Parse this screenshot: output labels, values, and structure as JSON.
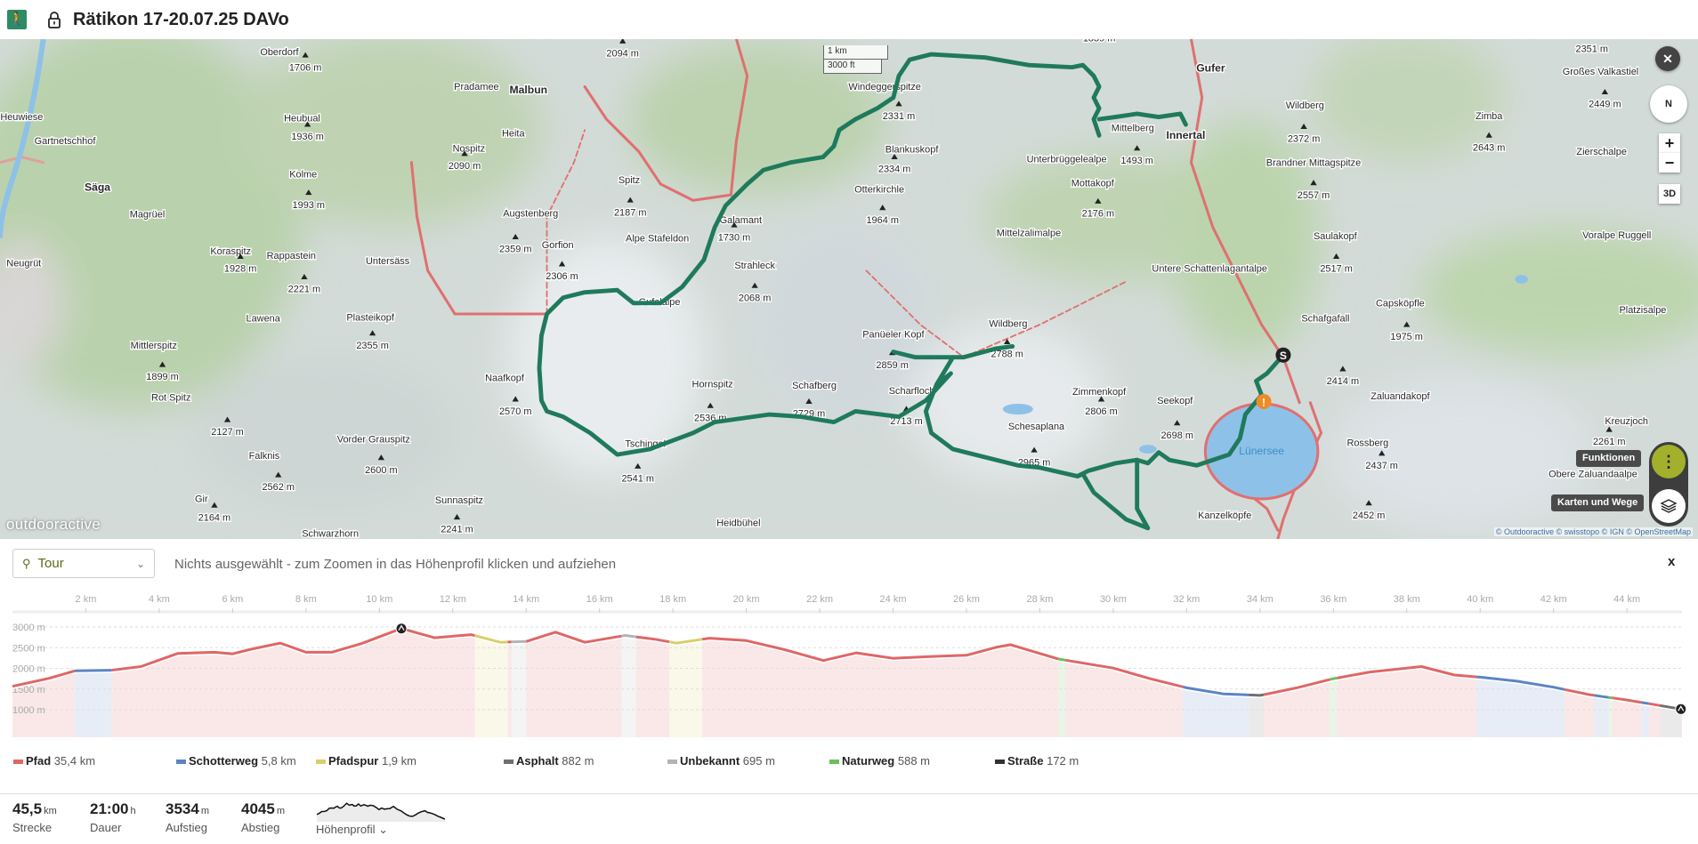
{
  "header": {
    "title": "Rätikon 17-20.07.25 DAVo",
    "activity_icon": "hiking-icon",
    "lock_icon": "lock-icon"
  },
  "map": {
    "scale_km": "1 km",
    "scale_ft": "3000 ft",
    "logo": "outdooractive",
    "attribution": "© Outdooractive © swisstopo © IGN © OpenStreetMap",
    "lake": "Lünersee",
    "controls": {
      "close": "✕",
      "compass": "N",
      "zoom_in": "+",
      "zoom_out": "−",
      "three_d": "3D",
      "functions_tip": "Funktionen",
      "layers_tip": "Karten und Wege"
    },
    "route_color": "#1f7a5c",
    "labels": [
      {
        "t": "Oberdorf",
        "k": "place"
      },
      {
        "t": "Heuwiese",
        "k": "place"
      },
      {
        "t": "Gartnetschhof",
        "k": "place"
      },
      {
        "t": "Säga",
        "k": "town"
      },
      {
        "t": "Neugrüt",
        "k": "place"
      },
      {
        "t": "Magrüel",
        "k": "place"
      },
      {
        "t": "Pradamee",
        "k": "place"
      },
      {
        "t": "Malbun",
        "k": "town"
      },
      {
        "t": "Heita",
        "k": "place"
      },
      {
        "t": "Nospitz",
        "k": "place"
      },
      {
        "t": "Augstenberg",
        "k": "place"
      },
      {
        "t": "Gorfion",
        "k": "place"
      },
      {
        "t": "Alpe Stafeldon",
        "k": "place"
      },
      {
        "t": "Gufelalpe",
        "k": "place"
      },
      {
        "t": "Untersäss",
        "k": "place"
      },
      {
        "t": "Lawena",
        "k": "place"
      },
      {
        "t": "Mittlerspitz",
        "k": "place"
      },
      {
        "t": "Rot Spitz",
        "k": "place"
      },
      {
        "t": "Falknis",
        "k": "place"
      },
      {
        "t": "Gir",
        "k": "place"
      },
      {
        "t": "Schwarzhorn",
        "k": "place"
      },
      {
        "t": "Heidbühel",
        "k": "place"
      },
      {
        "t": "Tschingel",
        "k": "place"
      },
      {
        "t": "Hornspitz",
        "k": "place"
      },
      {
        "t": "Schafberg",
        "k": "place"
      },
      {
        "t": "Scharfloch",
        "k": "place"
      },
      {
        "t": "Panüeler Kopf",
        "k": "place"
      },
      {
        "t": "Wildberg",
        "k": "place"
      },
      {
        "t": "Schesaplana",
        "k": "place"
      },
      {
        "t": "Zimmenkopf",
        "k": "place"
      },
      {
        "t": "Seekopf",
        "k": "place"
      },
      {
        "t": "Kanzelköpfe",
        "k": "place"
      },
      {
        "t": "Unterbrüggelealpe",
        "k": "place"
      },
      {
        "t": "Mittelzalimalpe",
        "k": "place"
      },
      {
        "t": "Mottakopf",
        "k": "place"
      },
      {
        "t": "Untere Schattenlagantalpe",
        "k": "place"
      },
      {
        "t": "Gufer",
        "k": "town"
      },
      {
        "t": "Innertal",
        "k": "town"
      },
      {
        "t": "Mittelberg",
        "k": "place"
      },
      {
        "t": "Windeggerspitze",
        "k": "place"
      },
      {
        "t": "Blankuskopf",
        "k": "place"
      },
      {
        "t": "Otterkirchle",
        "k": "place"
      },
      {
        "t": "Galamant",
        "k": "place"
      },
      {
        "t": "Strahleck",
        "k": "place"
      },
      {
        "t": "Spitz",
        "k": "place"
      },
      {
        "t": "Wildberg",
        "k": "place"
      },
      {
        "t": "Brandner Mittagspitze",
        "k": "place"
      },
      {
        "t": "Saulakopf",
        "k": "place"
      },
      {
        "t": "Zimba",
        "k": "place"
      },
      {
        "t": "Zierschalpe",
        "k": "place"
      },
      {
        "t": "Voralpe Ruggell",
        "k": "place"
      },
      {
        "t": "Capsköpfle",
        "k": "place"
      },
      {
        "t": "Schafgafall",
        "k": "place"
      },
      {
        "t": "Platzisalpe",
        "k": "place"
      },
      {
        "t": "Zaluandakopf",
        "k": "place"
      },
      {
        "t": "Rossberg",
        "k": "place"
      },
      {
        "t": "Obere Zaluandaalpe",
        "k": "place"
      },
      {
        "t": "Kreuzjoch",
        "k": "place"
      },
      {
        "t": "Großes Valkastiel",
        "k": "place"
      },
      {
        "t": "Koraspitz",
        "k": "place"
      },
      {
        "t": "Rappastein",
        "k": "place"
      },
      {
        "t": "Kolme",
        "k": "place"
      },
      {
        "t": "Heubual",
        "k": "place"
      },
      {
        "t": "Plasteikopf",
        "k": "place"
      },
      {
        "t": "Vorder Grauspitz",
        "k": "place"
      },
      {
        "t": "Sunnaspitz",
        "k": "place"
      },
      {
        "t": "Naafkopf",
        "k": "place"
      },
      {
        "t": "1706 m",
        "k": "h"
      },
      {
        "t": "1936 m",
        "k": "h"
      },
      {
        "t": "1993 m",
        "k": "h"
      },
      {
        "t": "2221 m",
        "k": "h"
      },
      {
        "t": "1928 m",
        "k": "h"
      },
      {
        "t": "2355 m",
        "k": "h"
      },
      {
        "t": "1899 m",
        "k": "h"
      },
      {
        "t": "2127 m",
        "k": "h"
      },
      {
        "t": "2600 m",
        "k": "h"
      },
      {
        "t": "2562 m",
        "k": "h"
      },
      {
        "t": "2164 m",
        "k": "h"
      },
      {
        "t": "2241 m",
        "k": "h"
      },
      {
        "t": "2094 m",
        "k": "h"
      },
      {
        "t": "2090 m",
        "k": "h"
      },
      {
        "t": "2359 m",
        "k": "h"
      },
      {
        "t": "2187 m",
        "k": "h"
      },
      {
        "t": "2306 m",
        "k": "h"
      },
      {
        "t": "1730 m",
        "k": "h"
      },
      {
        "t": "2068 m",
        "k": "h"
      },
      {
        "t": "2570 m",
        "k": "h"
      },
      {
        "t": "2536 m",
        "k": "h"
      },
      {
        "t": "2541 m",
        "k": "h"
      },
      {
        "t": "2729 m",
        "k": "h"
      },
      {
        "t": "2713 m",
        "k": "h"
      },
      {
        "t": "2859 m",
        "k": "h"
      },
      {
        "t": "2788 m",
        "k": "h"
      },
      {
        "t": "2965 m",
        "k": "h"
      },
      {
        "t": "2806 m",
        "k": "h"
      },
      {
        "t": "2698 m",
        "k": "h"
      },
      {
        "t": "2331 m",
        "k": "h"
      },
      {
        "t": "2334 m",
        "k": "h"
      },
      {
        "t": "1964 m",
        "k": "h"
      },
      {
        "t": "2176 m",
        "k": "h"
      },
      {
        "t": "1493 m",
        "k": "h"
      },
      {
        "t": "1839 m",
        "k": "h"
      },
      {
        "t": "2372 m",
        "k": "h"
      },
      {
        "t": "2557 m",
        "k": "h"
      },
      {
        "t": "2517 m",
        "k": "h"
      },
      {
        "t": "2414 m",
        "k": "h"
      },
      {
        "t": "1975 m",
        "k": "h"
      },
      {
        "t": "2437 m",
        "k": "h"
      },
      {
        "t": "2452 m",
        "k": "h"
      },
      {
        "t": "2643 m",
        "k": "h"
      },
      {
        "t": "2449 m",
        "k": "h"
      },
      {
        "t": "2351 m",
        "k": "h"
      },
      {
        "t": "2261 m",
        "k": "h"
      }
    ]
  },
  "profile": {
    "selector": "Tour",
    "hint": "Nichts ausgewählt - zum Zoomen in das Höhenprofil klicken und aufziehen",
    "close": "x"
  },
  "chart_data": {
    "type": "area",
    "xlabel": "",
    "ylabel": "",
    "xlim": [
      0,
      45.5
    ],
    "ylim": [
      330,
      3320
    ],
    "x_ticks": [
      "2 km",
      "4 km",
      "6 km",
      "8 km",
      "10 km",
      "12 km",
      "14 km",
      "16 km",
      "18 km",
      "20 km",
      "22 km",
      "24 km",
      "26 km",
      "28 km",
      "30 km",
      "32 km",
      "34 km",
      "36 km",
      "38 km",
      "40 km",
      "42 km",
      "44 km"
    ],
    "y_ticks": [
      "1000 m",
      "1500 m",
      "2000 m",
      "2500 m",
      "3000 m"
    ],
    "grid": true,
    "distance_km": [
      0,
      1,
      1.7,
      2.7,
      3.5,
      4.5,
      5.5,
      6.0,
      6.5,
      7.3,
      8.0,
      8.7,
      9.5,
      10.6,
      11.5,
      12.5,
      13.3,
      14.0,
      14.8,
      15.6,
      16.7,
      17.5,
      18.1,
      19.0,
      20.0,
      21.0,
      22.1,
      23,
      24,
      25,
      26,
      26.8,
      27.2,
      28.5,
      30,
      31,
      32,
      33,
      34,
      35,
      36,
      37,
      38.4,
      39.3,
      40,
      41,
      42,
      43,
      44,
      45.47
    ],
    "elevation_m": [
      1566,
      1760,
      1940,
      1955,
      2044,
      2360,
      2390,
      2350,
      2463,
      2610,
      2390,
      2390,
      2595,
      2963,
      2740,
      2815,
      2630,
      2650,
      2875,
      2630,
      2795,
      2705,
      2610,
      2730,
      2670,
      2463,
      2190,
      2375,
      2243,
      2287,
      2316,
      2507,
      2573,
      2228,
      2007,
      1750,
      1530,
      1383,
      1346,
      1530,
      1750,
      1912,
      2044,
      1838,
      1787,
      1691,
      1544,
      1360,
      1235,
      1015
    ],
    "surface_segments": [
      {
        "type": "Schotterweg",
        "from": 1.7,
        "to": 2.7
      },
      {
        "type": "Pfadspur",
        "from": 12.6,
        "to": 13.5
      },
      {
        "type": "Unbekannt",
        "from": 13.6,
        "to": 14.0
      },
      {
        "type": "Unbekannt",
        "from": 16.6,
        "to": 17.0
      },
      {
        "type": "Pfadspur",
        "from": 17.9,
        "to": 18.8
      },
      {
        "type": "Naturweg",
        "from": 28.5,
        "to": 28.7
      },
      {
        "type": "Schotterweg",
        "from": 31.9,
        "to": 33.7
      },
      {
        "type": "Asphalt",
        "from": 33.7,
        "to": 34.1
      },
      {
        "type": "Naturweg",
        "from": 35.9,
        "to": 36.1
      },
      {
        "type": "Schotterweg",
        "from": 39.9,
        "to": 42.3
      },
      {
        "type": "Schotterweg",
        "from": 43.1,
        "to": 43.5
      },
      {
        "type": "Naturweg",
        "from": 43.5,
        "to": 43.6
      },
      {
        "type": "Schotterweg",
        "from": 44.4,
        "to": 44.6
      },
      {
        "type": "Asphalt",
        "from": 44.9,
        "to": 45.47
      }
    ],
    "default_surface": "Pfad",
    "markers": [
      {
        "km": 10.6,
        "icon": "summit-icon"
      },
      {
        "km": 45.47,
        "icon": "finish-icon"
      }
    ]
  },
  "legend": [
    {
      "name": "Pfad",
      "value": "35,4 km",
      "color": "#e06666"
    },
    {
      "name": "Schotterweg",
      "value": "5,8 km",
      "color": "#5b84c4"
    },
    {
      "name": "Pfadspur",
      "value": "1,9 km",
      "color": "#d9cf6a"
    },
    {
      "name": "Asphalt",
      "value": "882 m",
      "color": "#707070"
    },
    {
      "name": "Unbekannt",
      "value": "695 m",
      "color": "#b4b4b4"
    },
    {
      "name": "Naturweg",
      "value": "588 m",
      "color": "#6cbf5c"
    },
    {
      "name": "Straße",
      "value": "172 m",
      "color": "#333333"
    }
  ],
  "stats": [
    {
      "value": "45,5",
      "unit": "km",
      "label": "Strecke"
    },
    {
      "value": "21:00",
      "unit": "h",
      "label": "Dauer"
    },
    {
      "value": "3534",
      "unit": "m",
      "label": "Aufstieg"
    },
    {
      "value": "4045",
      "unit": "m",
      "label": "Abstieg"
    }
  ],
  "mini_profile_label": "Höhenprofil ⌄"
}
